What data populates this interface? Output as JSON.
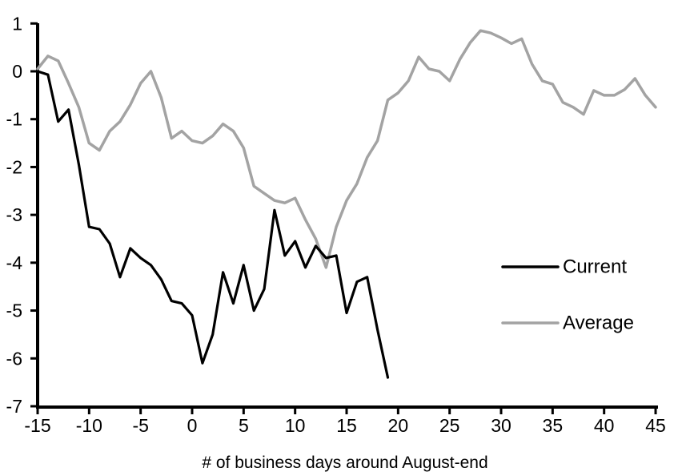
{
  "chart_data": {
    "type": "line",
    "title": "",
    "xlabel": "# of business days around August-end",
    "ylabel": "",
    "grid": false,
    "xlim": [
      -15,
      45
    ],
    "ylim": [
      -7,
      1
    ],
    "x_ticks": [
      -15,
      -10,
      -5,
      0,
      5,
      10,
      15,
      20,
      25,
      30,
      35,
      40,
      45
    ],
    "y_ticks": [
      1,
      0,
      -1,
      -2,
      -3,
      -4,
      -5,
      -6,
      -7
    ],
    "legend_position": "right-center",
    "colors": {
      "current": "#000000",
      "average": "#a3a3a3"
    },
    "series": [
      {
        "name": "Current",
        "color_key": "current",
        "x_start": -15,
        "x_step": 1,
        "values": [
          0.0,
          -0.07,
          -1.05,
          -0.8,
          -1.95,
          -3.25,
          -3.3,
          -3.6,
          -4.3,
          -3.7,
          -3.9,
          -4.05,
          -4.35,
          -4.8,
          -4.85,
          -5.1,
          -6.1,
          -5.5,
          -4.2,
          -4.85,
          -4.05,
          -5.0,
          -4.55,
          -2.9,
          -3.85,
          -3.55,
          -4.1,
          -3.65,
          -3.9,
          -3.85,
          -5.05,
          -4.4,
          -4.3,
          -5.4,
          -6.4
        ]
      },
      {
        "name": "Average",
        "color_key": "average",
        "x_start": -15,
        "x_step": 1,
        "values": [
          0.05,
          0.32,
          0.22,
          -0.25,
          -0.75,
          -1.5,
          -1.65,
          -1.25,
          -1.05,
          -0.7,
          -0.25,
          0.0,
          -0.55,
          -1.4,
          -1.25,
          -1.45,
          -1.5,
          -1.35,
          -1.1,
          -1.25,
          -1.6,
          -2.4,
          -2.55,
          -2.7,
          -2.75,
          -2.65,
          -3.1,
          -3.5,
          -4.1,
          -3.25,
          -2.7,
          -2.35,
          -1.8,
          -1.45,
          -0.6,
          -0.45,
          -0.2,
          0.3,
          0.05,
          0.0,
          -0.2,
          0.25,
          0.6,
          0.85,
          0.8,
          0.7,
          0.58,
          0.68,
          0.15,
          -0.2,
          -0.27,
          -0.65,
          -0.75,
          -0.9,
          -0.4,
          -0.5,
          -0.5,
          -0.38,
          -0.15,
          -0.5,
          -0.75
        ]
      }
    ]
  },
  "legend": {
    "items": [
      {
        "label": "Current",
        "color_key": "current"
      },
      {
        "label": "Average",
        "color_key": "average"
      }
    ]
  }
}
